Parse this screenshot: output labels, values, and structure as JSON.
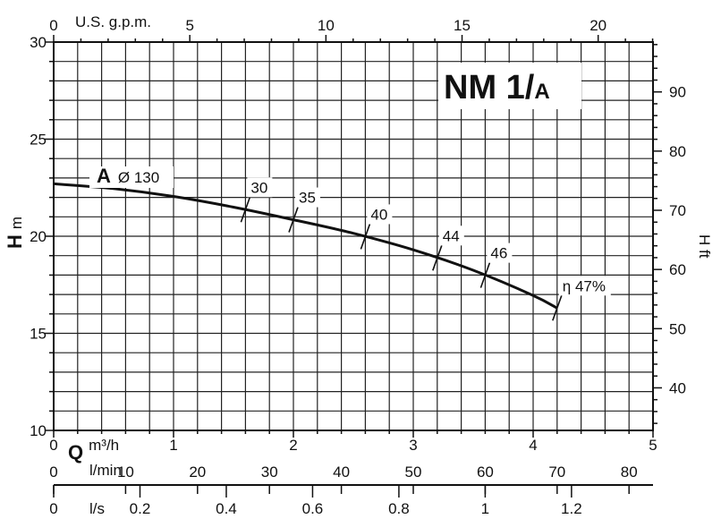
{
  "chart_data": {
    "type": "line",
    "title": "NM 1/A",
    "title_main": "NM 1/",
    "title_sub": "A",
    "curve": {
      "label_letter": "A",
      "label_diameter": "Ø 130",
      "x_q_m3h": [
        0,
        0.5,
        1.0,
        1.5,
        2.0,
        2.5,
        3.0,
        3.5,
        4.0,
        4.2
      ],
      "y_h_m": [
        22.7,
        22.45,
        22.05,
        21.5,
        20.85,
        20.15,
        19.3,
        18.25,
        16.95,
        16.3
      ]
    },
    "efficiency_marks": [
      {
        "label": "30",
        "q": 1.6
      },
      {
        "label": "35",
        "q": 2.0
      },
      {
        "label": "40",
        "q": 2.6
      },
      {
        "label": "44",
        "q": 3.2
      },
      {
        "label": "46",
        "q": 3.6
      },
      {
        "label": "47%",
        "q": 4.2,
        "prefix": "η"
      }
    ],
    "axes": {
      "left": {
        "title_bold": "H",
        "title_unit": "m",
        "ticks": [
          10,
          15,
          20,
          25,
          30
        ],
        "range": [
          10,
          30
        ]
      },
      "right": {
        "title": "H ft",
        "ticks": [
          40,
          50,
          60,
          70,
          80,
          90
        ]
      },
      "top": {
        "title": "U.S. g.p.m.",
        "ticks": [
          0,
          5,
          10,
          15,
          20
        ]
      },
      "bottom_m3h": {
        "title_bold": "Q",
        "title_unit": "m³/h",
        "ticks": [
          0,
          1,
          2,
          3,
          4,
          5
        ],
        "range": [
          0,
          5
        ]
      },
      "bottom_lmin": {
        "title": "l/min",
        "ticks": [
          0,
          10,
          20,
          30,
          40,
          50,
          60,
          70,
          80
        ]
      },
      "bottom_ls": {
        "title": "l/s",
        "ticks": [
          "0",
          "0.2",
          "0.4",
          "0.6",
          "0.8",
          "1",
          "1.2"
        ]
      }
    },
    "grid": true
  }
}
